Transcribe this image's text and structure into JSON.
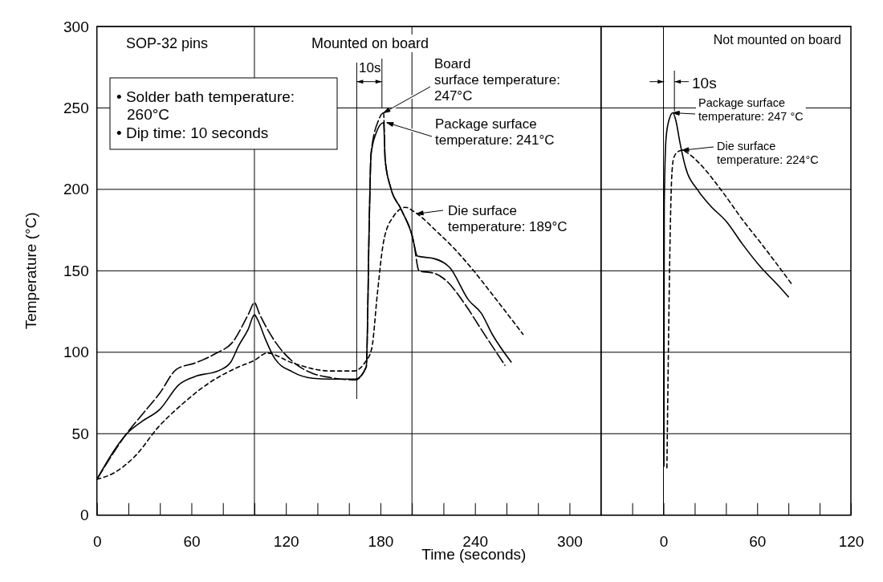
{
  "chart_data": [
    {
      "type": "line",
      "xlabel": "Time (seconds)",
      "ylabel": "Temperature (°C)",
      "xlim": [
        0,
        320
      ],
      "ylim": [
        0,
        300
      ],
      "xticks": [
        0,
        {
          "value": 20,
          "label": null
        },
        {
          "value": 40,
          "label": null
        },
        60,
        {
          "value": 80,
          "label": null
        },
        {
          "value": 100,
          "label": null
        },
        120,
        {
          "value": 140,
          "label": null
        },
        {
          "value": 160,
          "label": null
        },
        180,
        {
          "value": 200,
          "label": null
        },
        {
          "value": 220,
          "label": null
        },
        240,
        {
          "value": 260,
          "label": null
        },
        {
          "value": 280,
          "label": null
        },
        300
      ],
      "yticks": [
        0,
        50,
        100,
        150,
        200,
        250,
        300
      ],
      "grid": "y",
      "ref_lines": [
        {
          "axis": "x",
          "value": 100
        },
        {
          "axis": "x",
          "value": 200
        }
      ],
      "annotations": [
        "SOP-32 pins",
        "Mounted on board",
        "• Solder bath temperature:\n260°C\n• Dip time: 10 seconds",
        "10s",
        {
          "text": "Board\nsurface temperature:\n247°C",
          "x": 182,
          "y": 247
        },
        {
          "text": "Package surface\ntemperature: 241°C",
          "x": 184,
          "y": 241
        },
        {
          "text": "Die surface\ntemperature: 189°C",
          "x": 203,
          "y": 185
        }
      ],
      "series": [
        {
          "color": "#000000",
          "line_style": "solid",
          "x": [
            0,
            20,
            28.5,
            40,
            52,
            62,
            78,
            85,
            90,
            96,
            100,
            102,
            107,
            113,
            124,
            137,
            148,
            164,
            171,
            173,
            174,
            177,
            182,
            183,
            186.5,
            193,
            200,
            203.5,
            214,
            224,
            236,
            244,
            251,
            263
          ],
          "values": [
            22,
            51,
            57.5,
            65,
            80,
            85,
            89,
            94,
            104,
            114,
            123,
            120,
            108,
            96,
            88,
            84,
            83.5,
            83.5,
            91,
            185,
            221,
            234,
            241,
            218,
            201,
            188,
            172,
            159,
            157.5,
            152,
            132,
            124,
            111,
            94
          ]
        },
        {
          "color": "#000000",
          "line_style": "dashed",
          "x": [
            0,
            20,
            28.5,
            40,
            50.5,
            62.5,
            76,
            86,
            96.5,
            100,
            103,
            113.5,
            124,
            137,
            148,
            164,
            171,
            173,
            174,
            179,
            182,
            183,
            186.5,
            193,
            201,
            204.5,
            214,
            220.5,
            234,
            244,
            259
          ],
          "values": [
            22,
            51.5,
            61.5,
            75,
            89.5,
            93.5,
            99.5,
            106,
            124,
            130.5,
            124,
            106,
            94.5,
            87,
            84.5,
            83,
            91,
            185,
            222,
            243,
            247,
            218,
            201,
            188,
            168,
            150,
            148.5,
            145,
            129,
            114,
            92
          ]
        },
        {
          "color": "#000000",
          "line_style": "dotted",
          "x": [
            0,
            10,
            25,
            38.5,
            54,
            71,
            90,
            100,
            108,
            124,
            148,
            163,
            170,
            174.5,
            178,
            182,
            188,
            196,
            201,
            217,
            225.5,
            237.5,
            251,
            270.5
          ],
          "values": [
            22,
            25.5,
            37,
            53.5,
            68,
            81,
            91,
            95,
            99.5,
            93.5,
            88.5,
            88.5,
            93.5,
            102.5,
            135.5,
            168,
            183,
            189,
            186.5,
            173,
            165,
            152,
            135.5,
            111
          ]
        }
      ]
    },
    {
      "type": "line",
      "xlim": [
        -40,
        120
      ],
      "ylim": [
        0,
        300
      ],
      "xticks": [
        {
          "value": -20,
          "label": null
        },
        0,
        {
          "value": 20,
          "label": null
        },
        {
          "value": 40,
          "label": null
        },
        60,
        {
          "value": 80,
          "label": null
        },
        {
          "value": 100,
          "label": null
        },
        120
      ],
      "yticks": [
        0,
        50,
        100,
        150,
        200,
        250,
        300
      ],
      "grid": "y",
      "tick_labels": "x",
      "ref_lines": [
        {
          "axis": "x",
          "value": 0
        }
      ],
      "annotations": [
        "Not mounted on board",
        {
          "text": "10s",
          "x": 7,
          "y": 248
        },
        {
          "text": "Package surface\ntemperature: 247 °C",
          "x": 6,
          "y": 247
        },
        {
          "text": "Die surface\ntemperature: 224°C",
          "x": 12,
          "y": 224
        }
      ],
      "series": [
        {
          "color": "#000000",
          "line_style": "solid",
          "x": [
            0.3,
            0.5,
            1.7,
            4,
            6,
            8,
            10.5,
            14,
            22,
            30,
            40.5,
            50.5,
            62.5,
            72.5,
            80
          ],
          "values": [
            30,
            191,
            232,
            244,
            247,
            242,
            229,
            214,
            199.5,
            190,
            180,
            166.5,
            152,
            142,
            134
          ]
        },
        {
          "color": "#000000",
          "line_style": "dotted",
          "x": [
            2.2,
            5.3,
            6.5,
            9,
            12,
            16,
            23,
            37,
            50.5,
            64,
            82
          ],
          "values": [
            29,
            208,
            219,
            223,
            224,
            222,
            216,
            199.5,
            181.5,
            165,
            142
          ]
        }
      ]
    }
  ]
}
